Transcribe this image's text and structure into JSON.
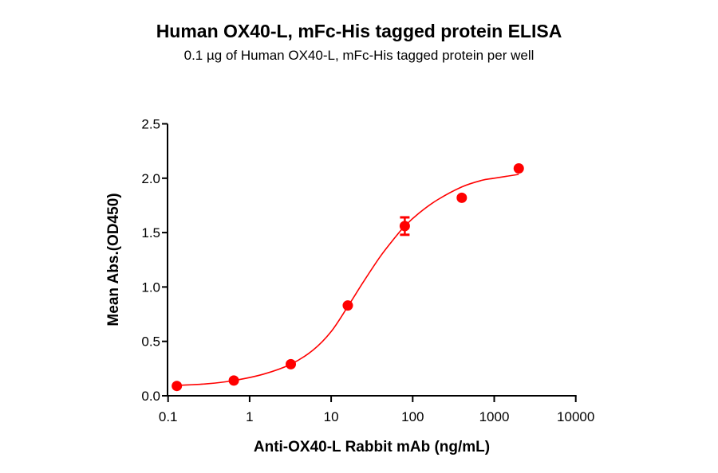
{
  "chart": {
    "title": "Human OX40-L, mFc-His tagged protein ELISA",
    "subtitle": "0.1 µg of Human OX40-L, mFc-His tagged protein per well"
  },
  "chart_data": {
    "type": "scatter",
    "title": "Human OX40-L, mFc-His tagged protein ELISA",
    "subtitle": "0.1 µg of Human OX40-L, mFc-His tagged protein per well",
    "xlabel": "Anti-OX40-L Rabbit mAb (ng/mL)",
    "ylabel": "Mean Abs.(OD450)",
    "xscale": "log",
    "xlim": [
      0.1,
      10000
    ],
    "ylim": [
      0,
      2.5
    ],
    "xticks": [
      "0.1",
      "1",
      "10",
      "100",
      "1000",
      "10000"
    ],
    "yticks": [
      "0.0",
      "0.5",
      "1.0",
      "1.5",
      "2.0",
      "2.5"
    ],
    "grid": false,
    "legend": null,
    "color": "#ff0000",
    "series": [
      {
        "name": "Mean Abs.(OD450)",
        "x": [
          0.128,
          0.64,
          3.2,
          16,
          80,
          400,
          2000
        ],
        "y": [
          0.09,
          0.14,
          0.29,
          0.83,
          1.56,
          1.82,
          2.09
        ],
        "error": [
          0,
          0,
          0,
          0,
          0.08,
          0,
          0
        ]
      }
    ],
    "fit_curve": {
      "type": "4PL sigmoid",
      "x": [
        0.128,
        0.3,
        0.64,
        1.5,
        3.2,
        6,
        10,
        16,
        25,
        40,
        60,
        80,
        120,
        200,
        400,
        700,
        1000,
        2000
      ],
      "y": [
        0.095,
        0.11,
        0.14,
        0.2,
        0.29,
        0.42,
        0.59,
        0.82,
        1.05,
        1.28,
        1.45,
        1.56,
        1.68,
        1.8,
        1.92,
        1.98,
        2.0,
        2.035
      ]
    }
  }
}
